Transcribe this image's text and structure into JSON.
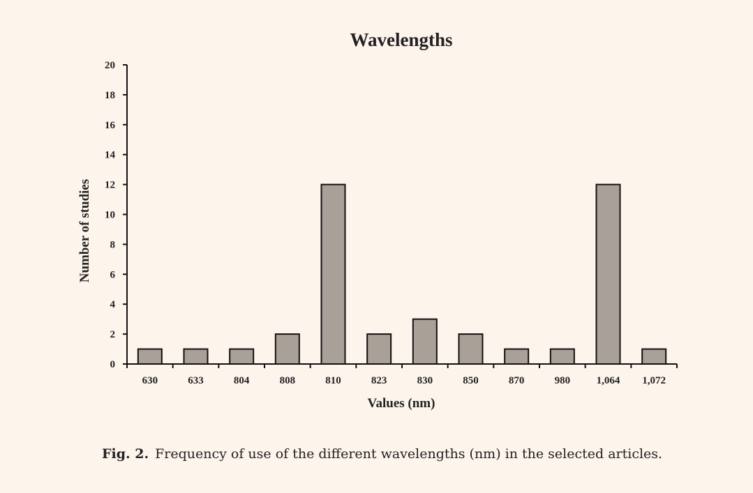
{
  "chart_data": {
    "type": "bar",
    "title": "Wavelengths",
    "xlabel": "Values (nm)",
    "ylabel": "Number of studies",
    "categories": [
      "630",
      "633",
      "804",
      "808",
      "810",
      "823",
      "830",
      "850",
      "870",
      "980",
      "1,064",
      "1,072"
    ],
    "values": [
      1,
      1,
      1,
      2,
      12,
      2,
      3,
      2,
      1,
      1,
      12,
      1
    ],
    "ylim": [
      0,
      20
    ],
    "yticks": [
      0,
      2,
      4,
      6,
      8,
      10,
      12,
      14,
      16,
      18,
      20
    ],
    "grid": false,
    "bar_color": "#a9a097"
  },
  "caption": {
    "label": "Fig. 2.",
    "text": "Frequency of use of the different wavelengths (nm) in the selected articles."
  }
}
